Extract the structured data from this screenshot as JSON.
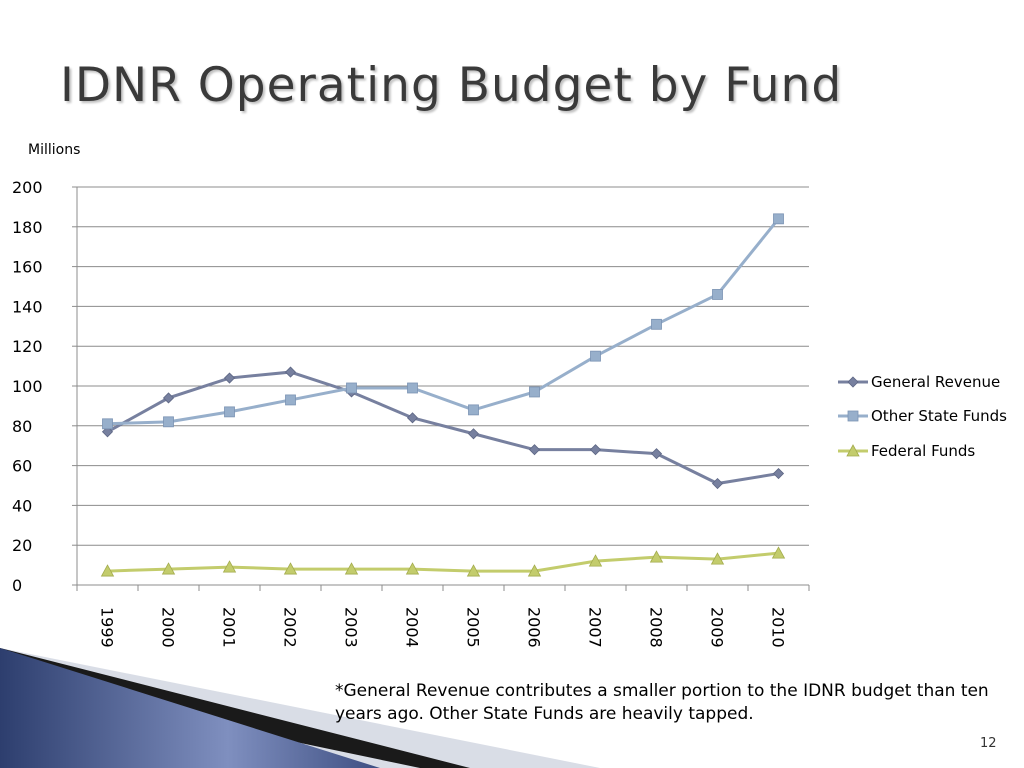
{
  "slide": {
    "title": "IDNR Operating Budget by Fund",
    "unit_label": "Millions",
    "footnote": "*General Revenue contributes a smaller portion to the IDNR budget than ten years ago. Other State Funds are heavily tapped.",
    "slide_number": "12"
  },
  "chart_data": {
    "type": "line",
    "categories": [
      "1999",
      "2000",
      "2001",
      "2002",
      "2003",
      "2004",
      "2005",
      "2006",
      "2007",
      "2008",
      "2009",
      "2010"
    ],
    "ylabel": "Millions",
    "ylim": [
      0,
      200
    ],
    "yticks": [
      0,
      20,
      40,
      60,
      80,
      100,
      120,
      140,
      160,
      180,
      200
    ],
    "grid": true,
    "legend_position": "right",
    "series": [
      {
        "name": "General Revenue",
        "color": "#77809f",
        "marker": "diamond",
        "values": [
          77,
          94,
          104,
          107,
          97,
          84,
          76,
          68,
          68,
          66,
          51,
          56
        ]
      },
      {
        "name": "Other State Funds",
        "color": "#97afcb",
        "marker": "square",
        "values": [
          81,
          82,
          87,
          93,
          99,
          99,
          88,
          97,
          115,
          131,
          146,
          184
        ]
      },
      {
        "name": "Federal Funds",
        "color": "#c3cc6c",
        "marker": "triangle",
        "values": [
          7,
          8,
          9,
          8,
          8,
          8,
          7,
          7,
          12,
          14,
          13,
          16
        ]
      }
    ]
  }
}
